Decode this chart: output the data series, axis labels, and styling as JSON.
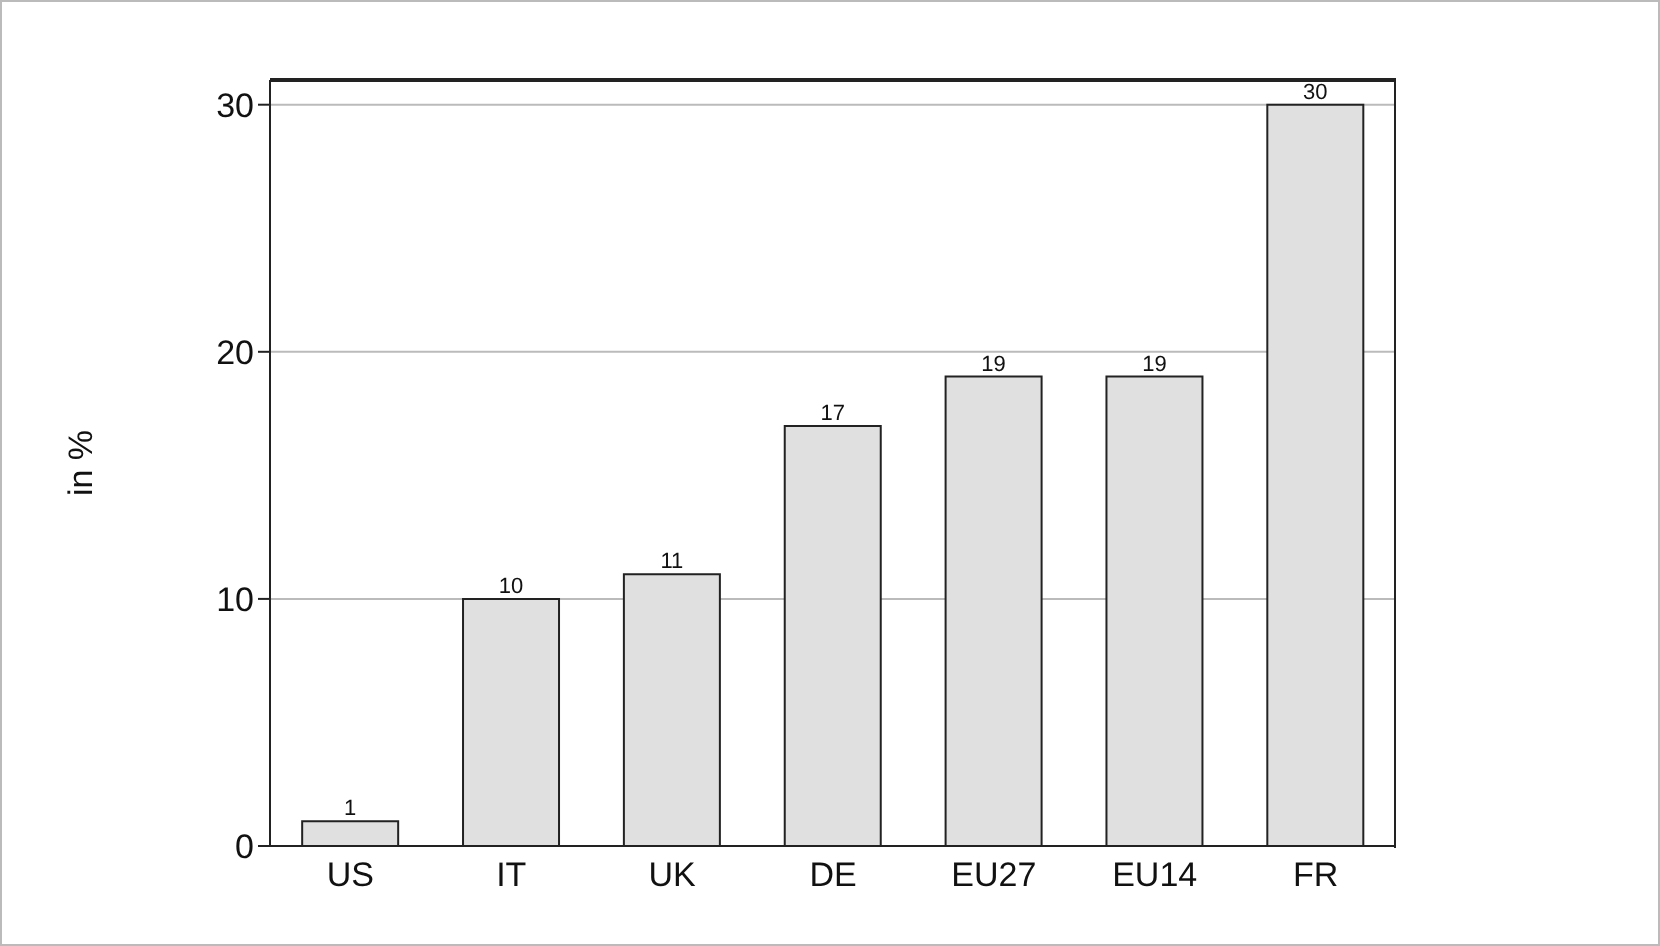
{
  "chart_data": {
    "type": "bar",
    "ylabel": "in %",
    "categories": [
      "US",
      "IT",
      "UK",
      "DE",
      "EU27",
      "EU14",
      "FR"
    ],
    "values": [
      1,
      10,
      11,
      17,
      19,
      19,
      30
    ],
    "color": "#e0e0e0",
    "ylim": [
      0,
      31
    ],
    "yticks": [
      0,
      10,
      20,
      30
    ],
    "grid": "y",
    "data_labels": true
  }
}
